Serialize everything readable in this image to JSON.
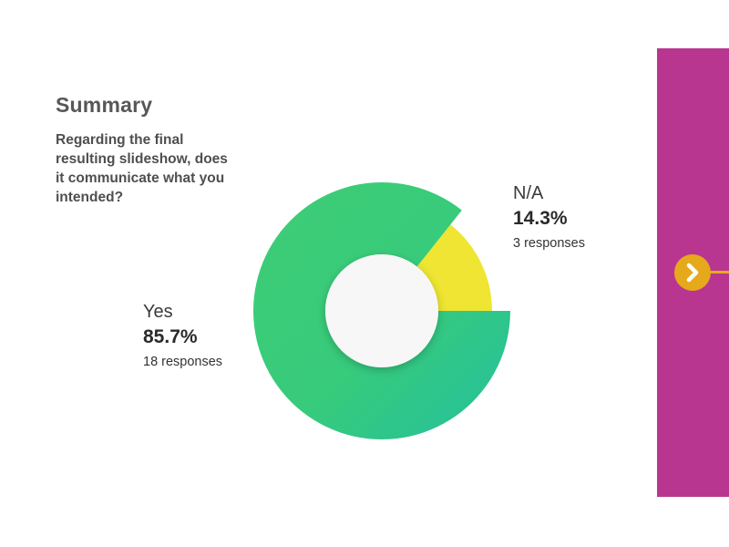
{
  "summary": {
    "title": "Summary",
    "question": "Regarding the final resulting slideshow, does it communicate what you intended?"
  },
  "chart_data": {
    "type": "pie",
    "categories": [
      "Yes",
      "N/A"
    ],
    "values": [
      85.7,
      14.3
    ],
    "percent_labels": [
      "85.7%",
      "14.3%"
    ],
    "responses": [
      18,
      3
    ],
    "response_labels": [
      "18 responses",
      "3 responses"
    ],
    "colors": [
      "#3dcc79",
      "#efe532"
    ],
    "accent_color": "#27c19a",
    "title": "Summary"
  },
  "navigation": {
    "next_icon": "chevron-right-icon",
    "panel_color": "#b8368f",
    "button_color": "#e7a91c"
  }
}
